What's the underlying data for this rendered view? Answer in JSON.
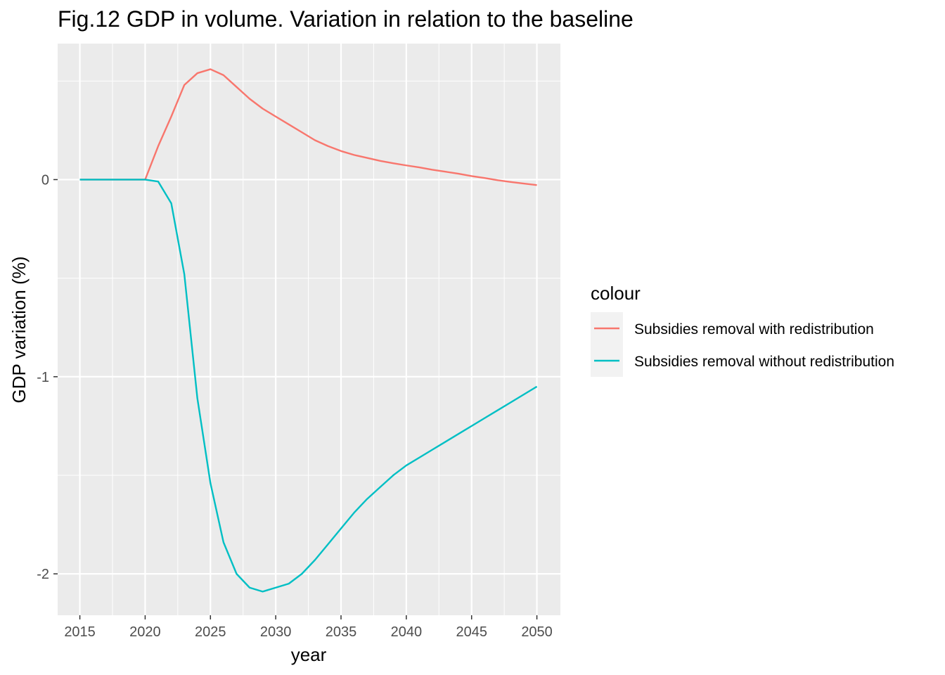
{
  "chart_data": {
    "type": "line",
    "title": "Fig.12 GDP in volume. Variation in relation to the baseline",
    "xlabel": "year",
    "ylabel": "GDP variation (%)",
    "xlim": [
      2013.3,
      2051.8
    ],
    "ylim": [
      -2.21,
      0.69
    ],
    "x_ticks": [
      2015,
      2020,
      2025,
      2030,
      2035,
      2040,
      2045,
      2050
    ],
    "y_ticks": [
      0,
      -1,
      -2
    ],
    "grid": true,
    "legend": {
      "title": "colour",
      "position": "right"
    },
    "series": [
      {
        "name": "Subsidies removal with redistribution",
        "color": "#F8766D",
        "x": [
          2015,
          2016,
          2017,
          2018,
          2019,
          2020,
          2021,
          2022,
          2023,
          2024,
          2025,
          2026,
          2027,
          2028,
          2029,
          2030,
          2031,
          2032,
          2033,
          2034,
          2035,
          2036,
          2037,
          2038,
          2039,
          2040,
          2041,
          2042,
          2043,
          2044,
          2045,
          2046,
          2047,
          2048,
          2049,
          2050
        ],
        "y": [
          0,
          0,
          0,
          0,
          0,
          0,
          0.17,
          0.32,
          0.48,
          0.54,
          0.56,
          0.53,
          0.47,
          0.41,
          0.36,
          0.32,
          0.28,
          0.24,
          0.2,
          0.17,
          0.145,
          0.125,
          0.11,
          0.095,
          0.083,
          0.072,
          0.062,
          0.05,
          0.04,
          0.03,
          0.018,
          0.008,
          -0.003,
          -0.012,
          -0.02,
          -0.028
        ]
      },
      {
        "name": "Subsidies removal without redistribution",
        "color": "#00BFC4",
        "x": [
          2015,
          2016,
          2017,
          2018,
          2019,
          2020,
          2021,
          2022,
          2023,
          2024,
          2025,
          2026,
          2027,
          2028,
          2029,
          2030,
          2031,
          2032,
          2033,
          2034,
          2035,
          2036,
          2037,
          2038,
          2039,
          2040,
          2041,
          2042,
          2043,
          2044,
          2045,
          2046,
          2047,
          2048,
          2049,
          2050
        ],
        "y": [
          0,
          0,
          0,
          0,
          0,
          0,
          -0.01,
          -0.12,
          -0.48,
          -1.11,
          -1.54,
          -1.84,
          -2.0,
          -2.07,
          -2.09,
          -2.07,
          -2.05,
          -2.0,
          -1.93,
          -1.85,
          -1.77,
          -1.69,
          -1.62,
          -1.56,
          -1.5,
          -1.45,
          -1.41,
          -1.37,
          -1.33,
          -1.29,
          -1.25,
          -1.21,
          -1.17,
          -1.13,
          -1.09,
          -1.05
        ]
      }
    ]
  }
}
